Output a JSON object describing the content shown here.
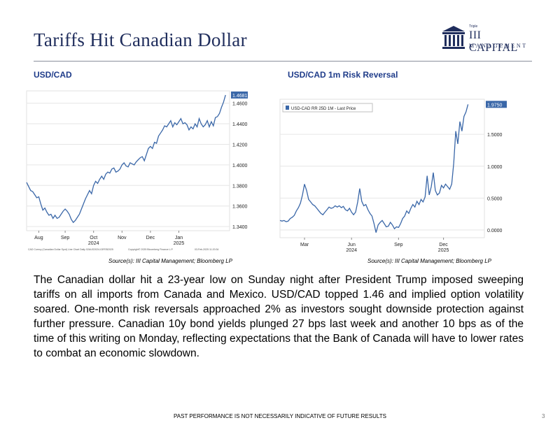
{
  "page": {
    "title": "Tariffs Hit Canadian Dollar",
    "logo": {
      "tiny": "Triple",
      "main": "III CAPITAL",
      "sub": "MANAGEMENT"
    },
    "body": "The Canadian dollar hit a 23-year low on Sunday night after President Trump imposed sweeping tariffs on all imports from Canada and Mexico. USD/CAD topped 1.46 and implied option volatility soared. One-month risk reversals approached 2% as investors sought downside protection against further pressure. Canadian 10y bond yields plunged 27 bps last week and another 10 bps as of the time of this writing on Monday, reflecting expectations that the Bank of Canada will have to lower rates to combat an economic slowdown.",
    "footer": "PAST PERFORMANCE IS NOT NECESSARILY INDICATIVE OF FUTURE RESULTS",
    "page_number": "3"
  },
  "colors": {
    "navy": "#1f2d5c",
    "chart_title": "#1f3c8a",
    "line": "#3a67a8",
    "badge": "#3a67a8"
  },
  "chart_data": [
    {
      "type": "line",
      "title": "USD/CAD",
      "source": "Source(s): III Capital Management; Bloomberg LP",
      "footnote_left": "CAD Curncy (Canadian Dollar Spot) Line Chart Daily 02AUG2024-03FEB2025",
      "footnote_mid": "Copyright© 2025 Bloomberg Finance L.P.",
      "footnote_right": "03-Feb-2025 11:20:34",
      "ylim": [
        1.336,
        1.472
      ],
      "yticks": [
        "1.3400",
        "1.3600",
        "1.3800",
        "1.4000",
        "1.4200",
        "1.4400",
        "1.4600"
      ],
      "ytick_values": [
        1.34,
        1.36,
        1.38,
        1.4,
        1.42,
        1.44,
        1.46
      ],
      "xticks": [
        {
          "label": "Aug",
          "sub": "",
          "x": 0.06
        },
        {
          "label": "Sep",
          "sub": "",
          "x": 0.19
        },
        {
          "label": "Oct",
          "sub": "2024",
          "x": 0.33
        },
        {
          "label": "Nov",
          "sub": "",
          "x": 0.47
        },
        {
          "label": "Dec",
          "sub": "",
          "x": 0.61
        },
        {
          "label": "Jan",
          "sub": "2025",
          "x": 0.75
        }
      ],
      "last_value": "1.4681",
      "series": [
        {
          "values": [
            [
              0.0,
              1.383
            ],
            [
              0.01,
              1.379
            ],
            [
              0.02,
              1.375
            ],
            [
              0.03,
              1.374
            ],
            [
              0.04,
              1.371
            ],
            [
              0.05,
              1.368
            ],
            [
              0.06,
              1.369
            ],
            [
              0.07,
              1.362
            ],
            [
              0.08,
              1.356
            ],
            [
              0.09,
              1.358
            ],
            [
              0.1,
              1.354
            ],
            [
              0.11,
              1.351
            ],
            [
              0.12,
              1.352
            ],
            [
              0.13,
              1.348
            ],
            [
              0.14,
              1.351
            ],
            [
              0.15,
              1.348
            ],
            [
              0.16,
              1.349
            ],
            [
              0.17,
              1.352
            ],
            [
              0.18,
              1.355
            ],
            [
              0.19,
              1.357
            ],
            [
              0.2,
              1.355
            ],
            [
              0.21,
              1.352
            ],
            [
              0.22,
              1.347
            ],
            [
              0.23,
              1.344
            ],
            [
              0.24,
              1.346
            ],
            [
              0.25,
              1.349
            ],
            [
              0.26,
              1.352
            ],
            [
              0.27,
              1.357
            ],
            [
              0.28,
              1.362
            ],
            [
              0.29,
              1.367
            ],
            [
              0.3,
              1.371
            ],
            [
              0.31,
              1.375
            ],
            [
              0.32,
              1.372
            ],
            [
              0.33,
              1.38
            ],
            [
              0.34,
              1.384
            ],
            [
              0.35,
              1.382
            ],
            [
              0.36,
              1.386
            ],
            [
              0.37,
              1.389
            ],
            [
              0.38,
              1.386
            ],
            [
              0.39,
              1.391
            ],
            [
              0.4,
              1.393
            ],
            [
              0.41,
              1.392
            ],
            [
              0.42,
              1.396
            ],
            [
              0.43,
              1.397
            ],
            [
              0.44,
              1.393
            ],
            [
              0.45,
              1.394
            ],
            [
              0.46,
              1.396
            ],
            [
              0.47,
              1.4
            ],
            [
              0.48,
              1.402
            ],
            [
              0.49,
              1.399
            ],
            [
              0.5,
              1.398
            ],
            [
              0.51,
              1.402
            ],
            [
              0.52,
              1.401
            ],
            [
              0.53,
              1.4
            ],
            [
              0.54,
              1.403
            ],
            [
              0.55,
              1.405
            ],
            [
              0.56,
              1.407
            ],
            [
              0.57,
              1.408
            ],
            [
              0.58,
              1.404
            ],
            [
              0.59,
              1.41
            ],
            [
              0.6,
              1.416
            ],
            [
              0.61,
              1.418
            ],
            [
              0.62,
              1.416
            ],
            [
              0.63,
              1.422
            ],
            [
              0.64,
              1.421
            ],
            [
              0.65,
              1.428
            ],
            [
              0.66,
              1.431
            ],
            [
              0.67,
              1.434
            ],
            [
              0.68,
              1.438
            ],
            [
              0.69,
              1.437
            ],
            [
              0.7,
              1.44
            ],
            [
              0.71,
              1.443
            ],
            [
              0.72,
              1.437
            ],
            [
              0.73,
              1.441
            ],
            [
              0.74,
              1.439
            ],
            [
              0.75,
              1.442
            ],
            [
              0.76,
              1.445
            ],
            [
              0.77,
              1.44
            ],
            [
              0.78,
              1.441
            ],
            [
              0.79,
              1.439
            ],
            [
              0.8,
              1.434
            ],
            [
              0.81,
              1.437
            ],
            [
              0.82,
              1.435
            ],
            [
              0.83,
              1.44
            ],
            [
              0.84,
              1.437
            ],
            [
              0.85,
              1.445
            ],
            [
              0.86,
              1.44
            ],
            [
              0.87,
              1.437
            ],
            [
              0.88,
              1.439
            ],
            [
              0.89,
              1.443
            ],
            [
              0.9,
              1.437
            ],
            [
              0.91,
              1.442
            ],
            [
              0.92,
              1.438
            ],
            [
              0.93,
              1.446
            ],
            [
              0.94,
              1.447
            ],
            [
              0.95,
              1.45
            ],
            [
              0.96,
              1.456
            ],
            [
              0.97,
              1.461
            ],
            [
              0.98,
              1.468
            ]
          ]
        }
      ]
    },
    {
      "type": "line",
      "title": "USD/CAD 1m Risk Reversal",
      "source": "Source(s): III Capital Management; Bloomberg LP",
      "legend": "USD-CAD RR 25D 1M - Last Price",
      "ylim": [
        -0.12,
        2.05
      ],
      "yticks": [
        "0.0000",
        "0.5000",
        "1.0000",
        "1.5000"
      ],
      "ytick_values": [
        0.0,
        0.5,
        1.0,
        1.5
      ],
      "xticks": [
        {
          "label": "Mar",
          "sub": "",
          "x": 0.12
        },
        {
          "label": "Jun",
          "sub": "2024",
          "x": 0.35
        },
        {
          "label": "Sep",
          "sub": "",
          "x": 0.58
        },
        {
          "label": "Dec",
          "sub": "2025",
          "x": 0.8
        }
      ],
      "last_value": "1.9750",
      "series": [
        {
          "values": [
            [
              0.0,
              0.15
            ],
            [
              0.01,
              0.14
            ],
            [
              0.02,
              0.15
            ],
            [
              0.03,
              0.13
            ],
            [
              0.04,
              0.14
            ],
            [
              0.05,
              0.18
            ],
            [
              0.06,
              0.2
            ],
            [
              0.07,
              0.23
            ],
            [
              0.08,
              0.3
            ],
            [
              0.09,
              0.35
            ],
            [
              0.1,
              0.42
            ],
            [
              0.11,
              0.55
            ],
            [
              0.12,
              0.72
            ],
            [
              0.13,
              0.62
            ],
            [
              0.14,
              0.48
            ],
            [
              0.15,
              0.44
            ],
            [
              0.16,
              0.4
            ],
            [
              0.17,
              0.38
            ],
            [
              0.18,
              0.34
            ],
            [
              0.19,
              0.3
            ],
            [
              0.2,
              0.26
            ],
            [
              0.21,
              0.24
            ],
            [
              0.22,
              0.28
            ],
            [
              0.23,
              0.32
            ],
            [
              0.24,
              0.36
            ],
            [
              0.25,
              0.34
            ],
            [
              0.26,
              0.35
            ],
            [
              0.27,
              0.38
            ],
            [
              0.28,
              0.36
            ],
            [
              0.29,
              0.38
            ],
            [
              0.3,
              0.35
            ],
            [
              0.31,
              0.37
            ],
            [
              0.32,
              0.32
            ],
            [
              0.33,
              0.3
            ],
            [
              0.34,
              0.34
            ],
            [
              0.35,
              0.28
            ],
            [
              0.36,
              0.24
            ],
            [
              0.37,
              0.28
            ],
            [
              0.38,
              0.44
            ],
            [
              0.39,
              0.65
            ],
            [
              0.4,
              0.45
            ],
            [
              0.41,
              0.38
            ],
            [
              0.42,
              0.4
            ],
            [
              0.43,
              0.32
            ],
            [
              0.44,
              0.26
            ],
            [
              0.45,
              0.22
            ],
            [
              0.46,
              0.1
            ],
            [
              0.47,
              -0.04
            ],
            [
              0.48,
              0.08
            ],
            [
              0.49,
              0.12
            ],
            [
              0.5,
              0.15
            ],
            [
              0.51,
              0.1
            ],
            [
              0.52,
              0.05
            ],
            [
              0.53,
              0.06
            ],
            [
              0.54,
              0.12
            ],
            [
              0.55,
              0.08
            ],
            [
              0.56,
              0.02
            ],
            [
              0.57,
              0.05
            ],
            [
              0.58,
              0.04
            ],
            [
              0.59,
              0.1
            ],
            [
              0.6,
              0.18
            ],
            [
              0.61,
              0.22
            ],
            [
              0.62,
              0.3
            ],
            [
              0.63,
              0.26
            ],
            [
              0.64,
              0.34
            ],
            [
              0.65,
              0.4
            ],
            [
              0.66,
              0.36
            ],
            [
              0.67,
              0.45
            ],
            [
              0.68,
              0.4
            ],
            [
              0.69,
              0.48
            ],
            [
              0.7,
              0.44
            ],
            [
              0.71,
              0.52
            ],
            [
              0.72,
              0.85
            ],
            [
              0.73,
              0.55
            ],
            [
              0.74,
              0.68
            ],
            [
              0.75,
              0.9
            ],
            [
              0.76,
              0.62
            ],
            [
              0.77,
              0.55
            ],
            [
              0.78,
              0.58
            ],
            [
              0.79,
              0.7
            ],
            [
              0.8,
              0.66
            ],
            [
              0.81,
              0.72
            ],
            [
              0.82,
              0.68
            ],
            [
              0.83,
              0.64
            ],
            [
              0.84,
              0.72
            ],
            [
              0.85,
              1.05
            ],
            [
              0.86,
              1.55
            ],
            [
              0.87,
              1.35
            ],
            [
              0.88,
              1.7
            ],
            [
              0.89,
              1.55
            ],
            [
              0.9,
              1.78
            ],
            [
              0.91,
              1.85
            ],
            [
              0.92,
              1.97
            ]
          ]
        }
      ]
    }
  ]
}
